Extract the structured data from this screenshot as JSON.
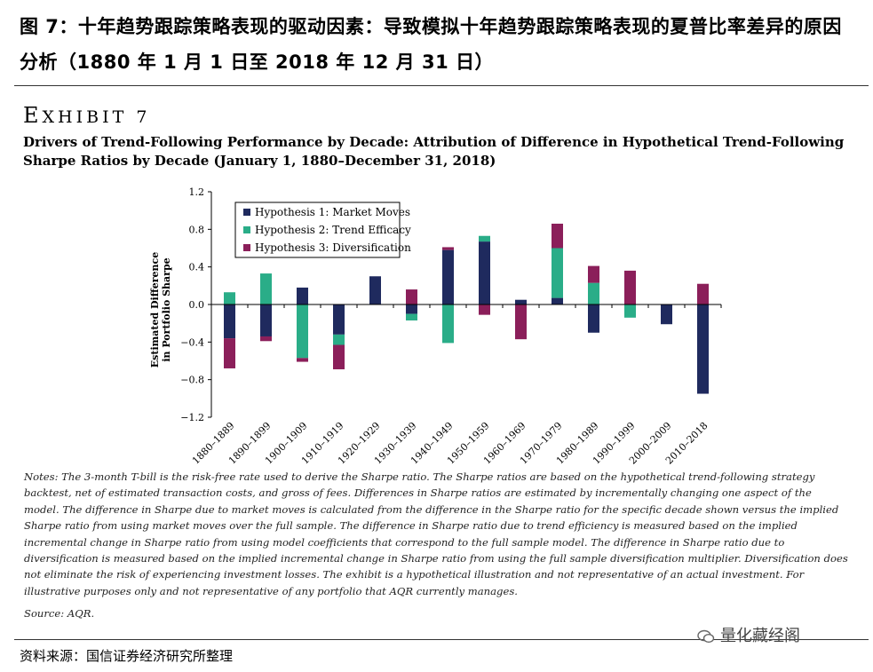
{
  "header": {
    "cn_title": "图 7：十年趋势跟踪策略表现的驱动因素：导致模拟十年趋势跟踪策略表现的夏普比率差异的原因分析（1880 年 1 月 1 日至 2018 年 12 月 31 日）",
    "exhibit_first": "E",
    "exhibit_rest": "XHIBIT 7",
    "en_title": "Drivers of Trend-Following Performance by Decade: Attribution of Difference in Hypothetical Trend-Following Sharpe Ratios by Decade (January 1, 1880–December 31, 2018)"
  },
  "chart_data": {
    "type": "bar",
    "stacked": true,
    "categories": [
      "1880–1889",
      "1890–1899",
      "1900–1909",
      "1910–1919",
      "1920–1929",
      "1930–1939",
      "1940–1949",
      "1950–1959",
      "1960–1969",
      "1970–1979",
      "1980–1989",
      "1990–1999",
      "2000–2009",
      "2010–2018"
    ],
    "series": [
      {
        "name": "Hypothesis 1: Market Moves",
        "color": "#1f2a5e",
        "values": [
          -0.36,
          -0.34,
          0.18,
          -0.32,
          0.3,
          -0.1,
          0.58,
          0.67,
          0.05,
          0.07,
          -0.3,
          0.0,
          -0.21,
          -0.95
        ]
      },
      {
        "name": "Hypothesis 2: Trend Efficacy",
        "color": "#2aad88",
        "values": [
          0.13,
          0.33,
          -0.57,
          -0.11,
          0.0,
          -0.07,
          -0.41,
          0.06,
          0.0,
          0.53,
          0.23,
          -0.14,
          0.0,
          0.0
        ]
      },
      {
        "name": "Hypothesis 3: Diversification",
        "color": "#8b1f5a",
        "values": [
          -0.32,
          -0.05,
          -0.04,
          -0.26,
          0.0,
          0.16,
          0.03,
          -0.11,
          -0.37,
          0.26,
          0.18,
          0.36,
          0.0,
          0.22
        ]
      }
    ],
    "ylabel": "Estimated Difference in Portfolio Sharpe",
    "ylim": [
      -1.2,
      1.2
    ],
    "yticks": [
      -1.2,
      -0.8,
      -0.4,
      0.0,
      0.4,
      0.8,
      1.2
    ],
    "ytick_labels": [
      "−1.2",
      "−0.8",
      "−0.4",
      "0.0",
      "0.4",
      "0.8",
      "1.2"
    ],
    "legend_position": "top-left"
  },
  "notes": "Notes: The 3-month T-bill is the risk-free rate used to derive the Sharpe ratio. The Sharpe ratios are based on the hypothetical trend-following strategy backtest, net of estimated transaction costs, and gross of fees. Differences in Sharpe ratios are estimated by incrementally changing one aspect of the model. The difference in Sharpe due to market moves is calculated from the difference in the Sharpe ratio for the specific decade shown versus the implied Sharpe ratio from using market moves over the full sample. The difference in Sharpe ratio due to trend efficiency is measured based on the implied incremental change in Sharpe ratio from using model coefficients that correspond to the full sample model. The difference in Sharpe ratio due to diversification is measured based on the implied incremental change in Sharpe ratio from using the full sample diversification multiplier. Diversification does not eliminate the risk of experiencing investment losses. The exhibit is a hypothetical illustration and not representative of an actual investment. For illustrative purposes only and not representative of any portfolio that AQR currently manages.",
  "source": "Source: AQR.",
  "cn_source": "资料来源：国信证券经济研究所整理",
  "watermark": "量化藏经阁"
}
